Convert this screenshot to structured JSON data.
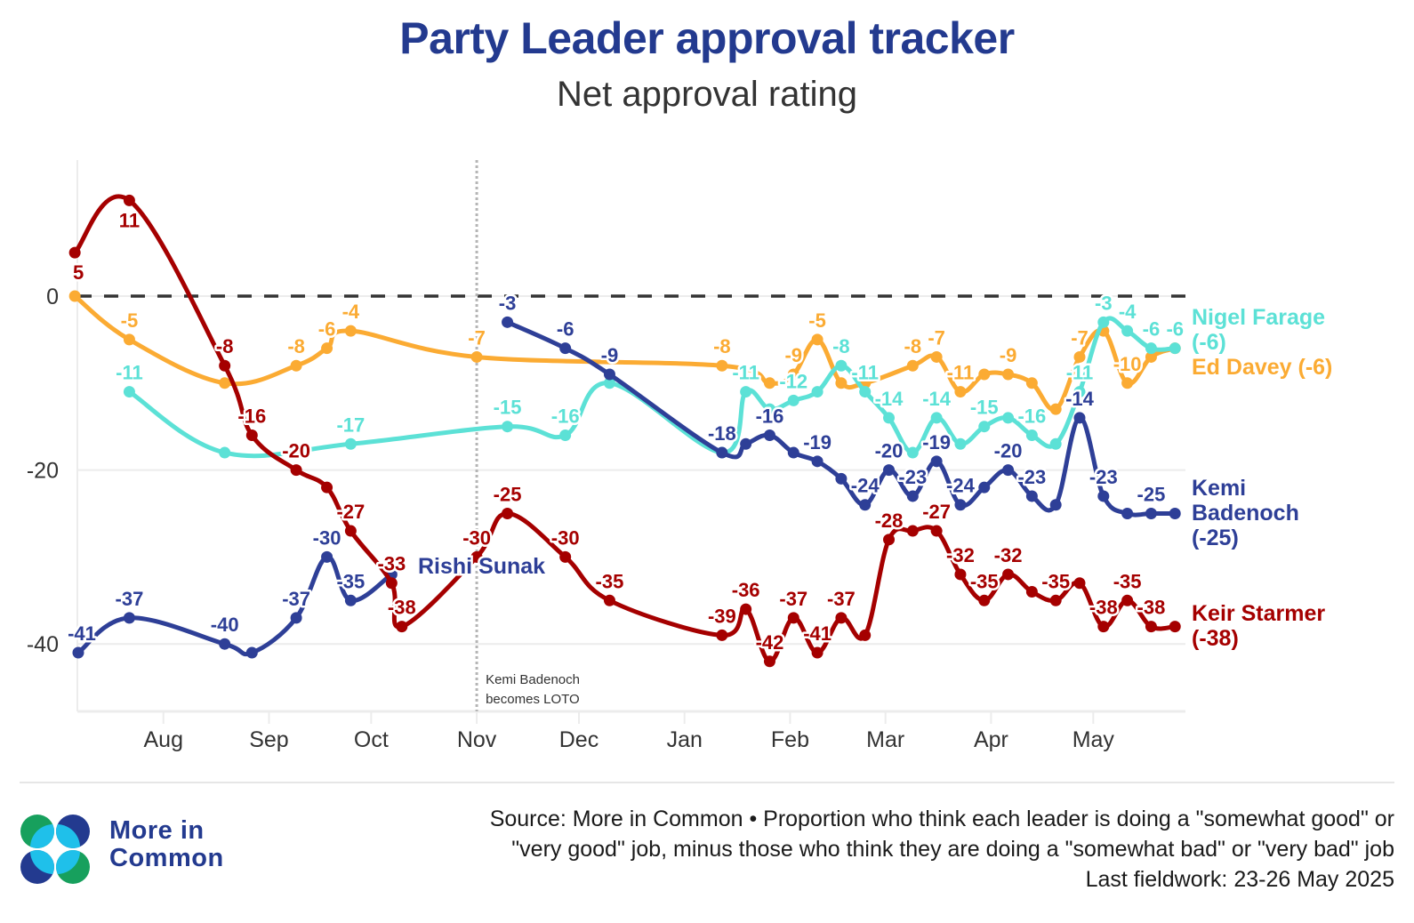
{
  "header": {
    "title": "Party Leader approval tracker",
    "subtitle": "Net approval rating"
  },
  "chart_data": {
    "type": "line",
    "title": "Party Leader approval tracker",
    "subtitle": "Net approval rating",
    "xlabel": "",
    "ylabel": "",
    "x_unit": "days since 1 Jul 2024",
    "x_range_label": [
      "Jul 2024",
      "May 2025"
    ],
    "xlim": [
      6,
      331
    ],
    "ylim": [
      -48,
      16
    ],
    "y_ticks": [
      0,
      -20,
      -40
    ],
    "y_tick_labels": [
      "0",
      "-20",
      "-40"
    ],
    "x_ticks": [
      {
        "day": 31,
        "label": "Aug"
      },
      {
        "day": 62,
        "label": "Sep"
      },
      {
        "day": 92,
        "label": "Oct"
      },
      {
        "day": 123,
        "label": "Nov"
      },
      {
        "day": 153,
        "label": "Dec"
      },
      {
        "day": 184,
        "label": "Jan"
      },
      {
        "day": 215,
        "label": "Feb"
      },
      {
        "day": 243,
        "label": "Mar"
      },
      {
        "day": 274,
        "label": "Apr"
      },
      {
        "day": 304,
        "label": "May"
      }
    ],
    "grid": true,
    "zero_line": "dashed",
    "annotation": {
      "day": 123,
      "lines": [
        "Kemi Badenoch",
        "becomes LOTO"
      ]
    },
    "series": [
      {
        "name": "Keir Starmer",
        "end_label": [
          "Keir Starmer",
          "(-38)"
        ],
        "color": "#a50000",
        "points": [
          {
            "day": 5,
            "value": 5,
            "label": "5"
          },
          {
            "day": 21,
            "value": 11,
            "label": "11"
          },
          {
            "day": 49,
            "value": -8,
            "label": "-8"
          },
          {
            "day": 57,
            "value": -16,
            "label": "-16"
          },
          {
            "day": 70,
            "value": -20,
            "label": "-20"
          },
          {
            "day": 79,
            "value": -22,
            "label": ""
          },
          {
            "day": 86,
            "value": -27,
            "label": "-27"
          },
          {
            "day": 98,
            "value": -33,
            "label": "-33"
          },
          {
            "day": 101,
            "value": -38,
            "label": "-38"
          },
          {
            "day": 123,
            "value": -30,
            "label": "-30"
          },
          {
            "day": 132,
            "value": -25,
            "label": "-25"
          },
          {
            "day": 149,
            "value": -30,
            "label": "-30"
          },
          {
            "day": 162,
            "value": -35,
            "label": "-35"
          },
          {
            "day": 195,
            "value": -39,
            "label": "-39"
          },
          {
            "day": 202,
            "value": -36,
            "label": "-36"
          },
          {
            "day": 209,
            "value": -42,
            "label": "-42"
          },
          {
            "day": 216,
            "value": -37,
            "label": "-37"
          },
          {
            "day": 223,
            "value": -41,
            "label": "-41"
          },
          {
            "day": 230,
            "value": -37,
            "label": "-37"
          },
          {
            "day": 237,
            "value": -39,
            "label": ""
          },
          {
            "day": 244,
            "value": -28,
            "label": "-28"
          },
          {
            "day": 251,
            "value": -27,
            "label": ""
          },
          {
            "day": 258,
            "value": -27,
            "label": "-27"
          },
          {
            "day": 265,
            "value": -32,
            "label": "-32"
          },
          {
            "day": 272,
            "value": -35,
            "label": "-35"
          },
          {
            "day": 279,
            "value": -32,
            "label": "-32"
          },
          {
            "day": 286,
            "value": -34,
            "label": ""
          },
          {
            "day": 293,
            "value": -35,
            "label": "-35"
          },
          {
            "day": 300,
            "value": -33,
            "label": ""
          },
          {
            "day": 307,
            "value": -38,
            "label": "-38"
          },
          {
            "day": 314,
            "value": -35,
            "label": "-35"
          },
          {
            "day": 321,
            "value": -38,
            "label": "-38"
          },
          {
            "day": 328,
            "value": -38,
            "label": ""
          }
        ]
      },
      {
        "name": "Rishi Sunak",
        "end_label": [
          "Rishi Sunak"
        ],
        "color": "#2e3f97",
        "points": [
          {
            "day": 6,
            "value": -41,
            "label": "-41"
          },
          {
            "day": 21,
            "value": -37,
            "label": "-37"
          },
          {
            "day": 49,
            "value": -40,
            "label": "-40"
          },
          {
            "day": 57,
            "value": -41,
            "label": ""
          },
          {
            "day": 70,
            "value": -37,
            "label": "-37"
          },
          {
            "day": 79,
            "value": -30,
            "label": "-30"
          },
          {
            "day": 86,
            "value": -35,
            "label": "-35"
          },
          {
            "day": 98,
            "value": -32,
            "label": ""
          }
        ]
      },
      {
        "name": "Kemi Badenoch",
        "end_label": [
          "Kemi",
          "Badenoch",
          "(-25)"
        ],
        "color": "#2e3f97",
        "points": [
          {
            "day": 132,
            "value": -3,
            "label": "-3"
          },
          {
            "day": 149,
            "value": -6,
            "label": "-6"
          },
          {
            "day": 162,
            "value": -9,
            "label": "-9"
          },
          {
            "day": 195,
            "value": -18,
            "label": "-18"
          },
          {
            "day": 202,
            "value": -17,
            "label": ""
          },
          {
            "day": 209,
            "value": -16,
            "label": "-16"
          },
          {
            "day": 216,
            "value": -18,
            "label": ""
          },
          {
            "day": 223,
            "value": -19,
            "label": "-19"
          },
          {
            "day": 230,
            "value": -21,
            "label": ""
          },
          {
            "day": 237,
            "value": -24,
            "label": "-24"
          },
          {
            "day": 244,
            "value": -20,
            "label": "-20"
          },
          {
            "day": 251,
            "value": -23,
            "label": "-23"
          },
          {
            "day": 258,
            "value": -19,
            "label": "-19"
          },
          {
            "day": 265,
            "value": -24,
            "label": "-24"
          },
          {
            "day": 272,
            "value": -22,
            "label": ""
          },
          {
            "day": 279,
            "value": -20,
            "label": "-20"
          },
          {
            "day": 286,
            "value": -23,
            "label": "-23"
          },
          {
            "day": 293,
            "value": -24,
            "label": ""
          },
          {
            "day": 300,
            "value": -14,
            "label": "-14"
          },
          {
            "day": 307,
            "value": -23,
            "label": "-23"
          },
          {
            "day": 314,
            "value": -25,
            "label": ""
          },
          {
            "day": 321,
            "value": -25,
            "label": "-25"
          },
          {
            "day": 328,
            "value": -25,
            "label": ""
          }
        ]
      },
      {
        "name": "Ed Davey",
        "end_label": [
          "Ed Davey (-6)"
        ],
        "color": "#fbab33",
        "points": [
          {
            "day": 5,
            "value": 0,
            "label": ""
          },
          {
            "day": 21,
            "value": -5,
            "label": "-5"
          },
          {
            "day": 49,
            "value": -10,
            "label": ""
          },
          {
            "day": 70,
            "value": -8,
            "label": "-8"
          },
          {
            "day": 79,
            "value": -6,
            "label": "-6"
          },
          {
            "day": 86,
            "value": -4,
            "label": "-4"
          },
          {
            "day": 123,
            "value": -7,
            "label": "-7"
          },
          {
            "day": 195,
            "value": -8,
            "label": "-8"
          },
          {
            "day": 209,
            "value": -10,
            "label": ""
          },
          {
            "day": 216,
            "value": -9,
            "label": "-9"
          },
          {
            "day": 223,
            "value": -5,
            "label": "-5"
          },
          {
            "day": 230,
            "value": -10,
            "label": ""
          },
          {
            "day": 237,
            "value": -10,
            "label": ""
          },
          {
            "day": 251,
            "value": -8,
            "label": "-8"
          },
          {
            "day": 258,
            "value": -7,
            "label": "-7"
          },
          {
            "day": 265,
            "value": -11,
            "label": "-11"
          },
          {
            "day": 272,
            "value": -9,
            "label": ""
          },
          {
            "day": 279,
            "value": -9,
            "label": "-9"
          },
          {
            "day": 286,
            "value": -10,
            "label": ""
          },
          {
            "day": 293,
            "value": -13,
            "label": ""
          },
          {
            "day": 300,
            "value": -7,
            "label": "-7"
          },
          {
            "day": 307,
            "value": -4,
            "label": ""
          },
          {
            "day": 314,
            "value": -10,
            "label": "-10"
          },
          {
            "day": 321,
            "value": -7,
            "label": ""
          },
          {
            "day": 328,
            "value": -6,
            "label": ""
          }
        ]
      },
      {
        "name": "Nigel Farage",
        "end_label": [
          "Nigel Farage",
          "(-6)"
        ],
        "color": "#5ce1d6",
        "points": [
          {
            "day": 21,
            "value": -11,
            "label": "-11"
          },
          {
            "day": 49,
            "value": -18,
            "label": ""
          },
          {
            "day": 86,
            "value": -17,
            "label": "-17"
          },
          {
            "day": 132,
            "value": -15,
            "label": "-15"
          },
          {
            "day": 149,
            "value": -16,
            "label": "-16"
          },
          {
            "day": 162,
            "value": -10,
            "label": ""
          },
          {
            "day": 195,
            "value": -18,
            "label": ""
          },
          {
            "day": 202,
            "value": -11,
            "label": "-11"
          },
          {
            "day": 209,
            "value": -13,
            "label": ""
          },
          {
            "day": 216,
            "value": -12,
            "label": "-12"
          },
          {
            "day": 223,
            "value": -11,
            "label": ""
          },
          {
            "day": 230,
            "value": -8,
            "label": "-8"
          },
          {
            "day": 237,
            "value": -11,
            "label": "-11"
          },
          {
            "day": 244,
            "value": -14,
            "label": "-14"
          },
          {
            "day": 251,
            "value": -18,
            "label": ""
          },
          {
            "day": 258,
            "value": -14,
            "label": "-14"
          },
          {
            "day": 265,
            "value": -17,
            "label": ""
          },
          {
            "day": 272,
            "value": -15,
            "label": "-15"
          },
          {
            "day": 279,
            "value": -14,
            "label": ""
          },
          {
            "day": 286,
            "value": -16,
            "label": "-16"
          },
          {
            "day": 293,
            "value": -17,
            "label": ""
          },
          {
            "day": 300,
            "value": -11,
            "label": "-11"
          },
          {
            "day": 307,
            "value": -3,
            "label": "-3"
          },
          {
            "day": 314,
            "value": -4,
            "label": "-4"
          },
          {
            "day": 321,
            "value": -6,
            "label": "-6"
          },
          {
            "day": 328,
            "value": -6,
            "label": "-6"
          }
        ]
      }
    ]
  },
  "footer": {
    "logo_text_line1": "More in",
    "logo_text_line2": "Common",
    "source_line1": "Source: More in Common • Proportion who think each leader is doing a \"somewhat good\" or",
    "source_line2": "\"very good\" job, minus those who think they are doing a \"somewhat bad\" or \"very bad\" job",
    "source_line3": "Last fieldwork: 23-26 May 2025"
  }
}
